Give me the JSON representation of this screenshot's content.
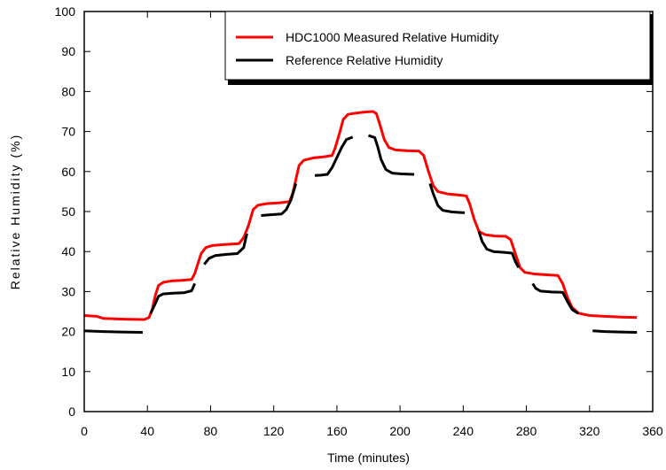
{
  "chart_data": {
    "type": "line",
    "title": "",
    "xlabel": "Time (minutes)",
    "ylabel": "Relative Humidity (%)",
    "xlim": [
      0,
      360
    ],
    "ylim": [
      0,
      100
    ],
    "xticks": [
      "0",
      "40",
      "80",
      "120",
      "160",
      "200",
      "240",
      "280",
      "320",
      "360"
    ],
    "yticks": [
      "0",
      "10",
      "20",
      "30",
      "40",
      "50",
      "60",
      "70",
      "80",
      "90",
      "100"
    ],
    "grid": false,
    "legend_position": "top-right",
    "series": [
      {
        "name": "HDC1000 Measured Relative Humidity",
        "color": "#ff0000",
        "segments": [
          [
            [
              0,
              24
            ],
            [
              8,
              23.8
            ],
            [
              12,
              23.3
            ],
            [
              25,
              23.1
            ],
            [
              38,
              23.0
            ],
            [
              41,
              23.5
            ],
            [
              43,
              25.5
            ],
            [
              45,
              29
            ],
            [
              47,
              31.5
            ],
            [
              50,
              32.3
            ],
            [
              56,
              32.7
            ],
            [
              62,
              32.8
            ],
            [
              68,
              33.0
            ],
            [
              70,
              34.5
            ],
            [
              72,
              37
            ],
            [
              74,
              39.5
            ],
            [
              77,
              41
            ],
            [
              81,
              41.5
            ],
            [
              90,
              41.8
            ],
            [
              98,
              42
            ],
            [
              101,
              43.5
            ],
            [
              104,
              46.5
            ],
            [
              107,
              50.5
            ],
            [
              110,
              51.6
            ],
            [
              116,
              52
            ],
            [
              124,
              52.2
            ],
            [
              130,
              52.5
            ],
            [
              132,
              54.5
            ],
            [
              134,
              58
            ],
            [
              136,
              61.5
            ],
            [
              139,
              62.8
            ],
            [
              145,
              63.4
            ],
            [
              152,
              63.7
            ],
            [
              157,
              64
            ],
            [
              159,
              66
            ],
            [
              162,
              70
            ],
            [
              164,
              73
            ],
            [
              167,
              74.3
            ],
            [
              172,
              74.6
            ],
            [
              178,
              74.9
            ],
            [
              183,
              75
            ],
            [
              185,
              74.5
            ],
            [
              187,
              72
            ],
            [
              190,
              68
            ],
            [
              193,
              66
            ],
            [
              197,
              65.4
            ],
            [
              204,
              65.2
            ],
            [
              212,
              65.1
            ],
            [
              215,
              64
            ],
            [
              218,
              60
            ],
            [
              221,
              56.5
            ],
            [
              224,
              55
            ],
            [
              230,
              54.4
            ],
            [
              238,
              54.1
            ],
            [
              242,
              53.9
            ],
            [
              244,
              52
            ],
            [
              247,
              48
            ],
            [
              250,
              45
            ],
            [
              254,
              44.2
            ],
            [
              260,
              43.9
            ],
            [
              267,
              43.8
            ],
            [
              270,
              43
            ],
            [
              273,
              39.5
            ],
            [
              276,
              36
            ],
            [
              279,
              34.8
            ],
            [
              285,
              34.4
            ],
            [
              292,
              34.2
            ],
            [
              300,
              34.0
            ],
            [
              303,
              32
            ],
            [
              306,
              28.5
            ],
            [
              309,
              26
            ],
            [
              313,
              24.6
            ],
            [
              320,
              24
            ],
            [
              330,
              23.8
            ],
            [
              340,
              23.6
            ],
            [
              350,
              23.5
            ]
          ]
        ]
      },
      {
        "name": "Reference Relative Humidity",
        "color": "#000000",
        "segments": [
          [
            [
              0,
              20.2
            ],
            [
              12,
              20
            ],
            [
              24,
              19.9
            ],
            [
              37,
              19.8
            ]
          ],
          [
            [
              42,
              24.5
            ],
            [
              45,
              27
            ],
            [
              47,
              28.8
            ],
            [
              50,
              29.4
            ],
            [
              56,
              29.6
            ],
            [
              63,
              29.7
            ],
            [
              68,
              30.2
            ],
            [
              70,
              32
            ]
          ],
          [
            [
              76,
              36.8
            ],
            [
              79,
              38.3
            ],
            [
              83,
              39
            ],
            [
              90,
              39.3
            ],
            [
              97,
              39.5
            ],
            [
              101,
              41
            ],
            [
              103,
              44.5
            ]
          ],
          [
            [
              112,
              49
            ],
            [
              118,
              49.2
            ],
            [
              125,
              49.4
            ],
            [
              128,
              50.5
            ],
            [
              131,
              53
            ],
            [
              134,
              57
            ]
          ],
          [
            [
              146,
              59
            ],
            [
              150,
              59.1
            ],
            [
              154,
              59.3
            ],
            [
              157,
              61
            ],
            [
              160,
              63.5
            ],
            [
              163,
              66
            ],
            [
              166,
              68
            ],
            [
              170,
              68.6
            ]
          ],
          [
            [
              180,
              69
            ],
            [
              184,
              68.5
            ],
            [
              186,
              66
            ],
            [
              188,
              63
            ],
            [
              191,
              60.5
            ],
            [
              195,
              59.6
            ],
            [
              201,
              59.4
            ],
            [
              209,
              59.3
            ]
          ],
          [
            [
              219,
              57
            ],
            [
              221,
              54.5
            ],
            [
              224,
              51.5
            ],
            [
              227,
              50.3
            ],
            [
              233,
              49.9
            ],
            [
              241,
              49.7
            ]
          ],
          [
            [
              250,
              45
            ],
            [
              252,
              42.5
            ],
            [
              255,
              40.6
            ],
            [
              259,
              40
            ],
            [
              266,
              39.8
            ],
            [
              271,
              39.6
            ],
            [
              273,
              37.5
            ],
            [
              275,
              36
            ]
          ],
          [
            [
              284,
              32
            ],
            [
              286,
              30.8
            ],
            [
              289,
              30.1
            ],
            [
              296,
              29.9
            ],
            [
              303,
              29.8
            ],
            [
              306,
              27.5
            ],
            [
              309,
              25.5
            ],
            [
              313,
              24.5
            ]
          ],
          [
            [
              322,
              20.2
            ],
            [
              330,
              20
            ],
            [
              340,
              19.9
            ],
            [
              350,
              19.8
            ]
          ]
        ]
      }
    ]
  }
}
